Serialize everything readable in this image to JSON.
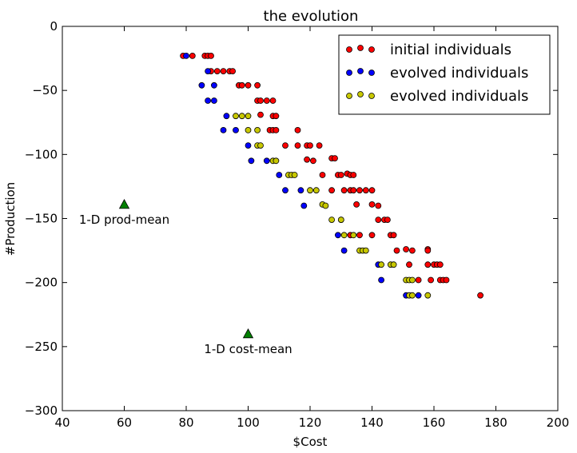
{
  "chart_data": {
    "type": "scatter",
    "title": "the evolution",
    "xlabel": "$Cost",
    "ylabel": "#Production",
    "xlim": [
      40,
      200
    ],
    "ylim": [
      -300,
      0
    ],
    "xticks": [
      40,
      60,
      80,
      100,
      120,
      140,
      160,
      180,
      200
    ],
    "yticks": [
      0,
      -50,
      -100,
      -150,
      -200,
      -250,
      -300
    ],
    "grid": false,
    "legend_position": "top-right",
    "series": [
      {
        "name": "initial individuals",
        "color": "#ff0000",
        "points": [
          [
            79,
            -23
          ],
          [
            82,
            -23
          ],
          [
            86,
            -23
          ],
          [
            87,
            -23
          ],
          [
            88,
            -23
          ],
          [
            88,
            -35
          ],
          [
            90,
            -35
          ],
          [
            92,
            -35
          ],
          [
            94,
            -35
          ],
          [
            95,
            -35
          ],
          [
            97,
            -46
          ],
          [
            98,
            -46
          ],
          [
            100,
            -46
          ],
          [
            103,
            -46
          ],
          [
            103,
            -58
          ],
          [
            104,
            -58
          ],
          [
            106,
            -58
          ],
          [
            108,
            -58
          ],
          [
            104,
            -69
          ],
          [
            108,
            -70
          ],
          [
            109,
            -70
          ],
          [
            107,
            -81
          ],
          [
            108,
            -81
          ],
          [
            109,
            -81
          ],
          [
            116,
            -81
          ],
          [
            112,
            -93
          ],
          [
            116,
            -93
          ],
          [
            119,
            -93
          ],
          [
            120,
            -93
          ],
          [
            123,
            -93
          ],
          [
            119,
            -104
          ],
          [
            121,
            -105
          ],
          [
            127,
            -103
          ],
          [
            128,
            -103
          ],
          [
            124,
            -116
          ],
          [
            129,
            -116
          ],
          [
            130,
            -116
          ],
          [
            132,
            -115
          ],
          [
            133,
            -116
          ],
          [
            134,
            -116
          ],
          [
            127,
            -128
          ],
          [
            131,
            -128
          ],
          [
            133,
            -128
          ],
          [
            134,
            -128
          ],
          [
            136,
            -128
          ],
          [
            138,
            -128
          ],
          [
            140,
            -128
          ],
          [
            135,
            -139
          ],
          [
            140,
            -139
          ],
          [
            142,
            -140
          ],
          [
            130,
            -151
          ],
          [
            142,
            -151
          ],
          [
            144,
            -151
          ],
          [
            145,
            -151
          ],
          [
            133,
            -163
          ],
          [
            136,
            -163
          ],
          [
            140,
            -163
          ],
          [
            146,
            -163
          ],
          [
            147,
            -163
          ],
          [
            148,
            -175
          ],
          [
            151,
            -174
          ],
          [
            153,
            -175
          ],
          [
            158,
            -174
          ],
          [
            158,
            -175
          ],
          [
            152,
            -186
          ],
          [
            158,
            -186
          ],
          [
            160,
            -186
          ],
          [
            161,
            -186
          ],
          [
            162,
            -186
          ],
          [
            155,
            -198
          ],
          [
            159,
            -198
          ],
          [
            162,
            -198
          ],
          [
            163,
            -198
          ],
          [
            164,
            -198
          ],
          [
            175,
            -210
          ]
        ]
      },
      {
        "name": "evolved individuals",
        "color": "#0000ff",
        "points": [
          [
            80,
            -23
          ],
          [
            87,
            -35
          ],
          [
            85,
            -46
          ],
          [
            89,
            -46
          ],
          [
            87,
            -58
          ],
          [
            89,
            -58
          ],
          [
            93,
            -70
          ],
          [
            92,
            -81
          ],
          [
            96,
            -81
          ],
          [
            100,
            -93
          ],
          [
            101,
            -105
          ],
          [
            106,
            -105
          ],
          [
            110,
            -116
          ],
          [
            112,
            -128
          ],
          [
            117,
            -128
          ],
          [
            118,
            -140
          ],
          [
            129,
            -163
          ],
          [
            131,
            -175
          ],
          [
            142,
            -186
          ],
          [
            143,
            -198
          ],
          [
            151,
            -210
          ],
          [
            155,
            -210
          ]
        ]
      },
      {
        "name": "evolved individuals",
        "color": "#c8c800",
        "points": [
          [
            96,
            -70
          ],
          [
            98,
            -70
          ],
          [
            100,
            -70
          ],
          [
            100,
            -81
          ],
          [
            103,
            -81
          ],
          [
            103,
            -93
          ],
          [
            104,
            -93
          ],
          [
            108,
            -105
          ],
          [
            109,
            -105
          ],
          [
            113,
            -116
          ],
          [
            114,
            -116
          ],
          [
            115,
            -116
          ],
          [
            120,
            -128
          ],
          [
            122,
            -128
          ],
          [
            124,
            -139
          ],
          [
            125,
            -140
          ],
          [
            127,
            -151
          ],
          [
            130,
            -151
          ],
          [
            131,
            -163
          ],
          [
            134,
            -163
          ],
          [
            136,
            -175
          ],
          [
            137,
            -175
          ],
          [
            138,
            -175
          ],
          [
            143,
            -186
          ],
          [
            146,
            -186
          ],
          [
            147,
            -186
          ],
          [
            151,
            -198
          ],
          [
            152,
            -198
          ],
          [
            153,
            -198
          ],
          [
            152,
            -210
          ],
          [
            153,
            -210
          ],
          [
            158,
            -210
          ]
        ]
      }
    ],
    "annotations": [
      {
        "text": "1-D prod-mean",
        "x": 60,
        "y": -139,
        "marker": "triangle",
        "color": "#007f00"
      },
      {
        "text": "1-D cost-mean",
        "x": 100,
        "y": -240,
        "marker": "triangle",
        "color": "#007f00"
      }
    ]
  }
}
